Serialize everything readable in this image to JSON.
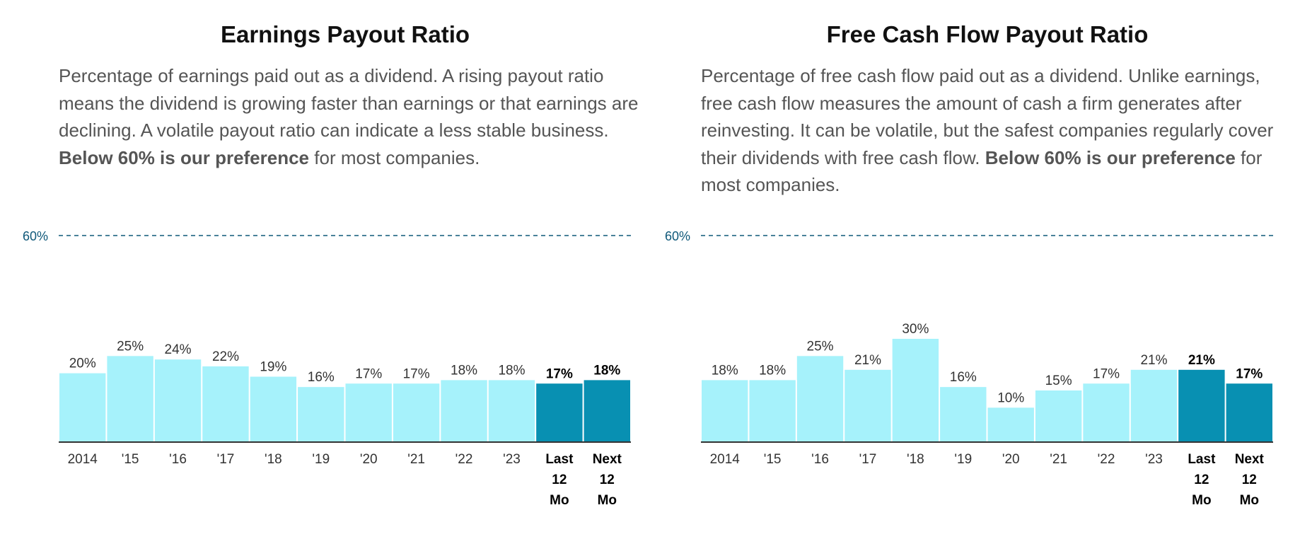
{
  "colors": {
    "bar_history": "#a6f2fb",
    "bar_highlight": "#0890b2",
    "threshold_line": "#0f5879",
    "axis": "#333333",
    "title": "#111111",
    "description": "#555555"
  },
  "panels": [
    {
      "title": "Earnings Payout Ratio",
      "description_parts": [
        "Percentage of earnings paid out as a dividend. A rising payout ratio means the dividend is growing faster than earnings or that earnings are declining. A volatile payout ratio can indicate a less stable business. ",
        "Below 60% is our preference",
        " for most companies."
      ]
    },
    {
      "title": "Free Cash Flow Payout Ratio",
      "description_parts": [
        "Percentage of free cash flow paid out as a dividend. Unlike earnings, free cash flow measures the amount of cash a firm generates after reinvesting. It can be volatile, but the safest companies regularly cover their dividends with free cash flow. ",
        "Below 60% is our preference",
        " for most companies."
      ]
    }
  ],
  "chart_data": [
    {
      "type": "bar",
      "title": "Earnings Payout Ratio",
      "categories": [
        "2014",
        "'15",
        "'16",
        "'17",
        "'18",
        "'19",
        "'20",
        "'21",
        "'22",
        "'23",
        "Last 12 Mo",
        "Next 12 Mo"
      ],
      "values": [
        20,
        25,
        24,
        22,
        19,
        16,
        17,
        17,
        18,
        18,
        17,
        18
      ],
      "value_labels": [
        "20%",
        "25%",
        "24%",
        "22%",
        "19%",
        "16%",
        "17%",
        "17%",
        "18%",
        "18%",
        "17%",
        "18%"
      ],
      "highlighted": [
        false,
        false,
        false,
        false,
        false,
        false,
        false,
        false,
        false,
        false,
        true,
        true
      ],
      "reference_line": {
        "value": 60,
        "label": "60%",
        "style": "dashed"
      },
      "ylim": [
        0,
        60
      ],
      "grid": false
    },
    {
      "type": "bar",
      "title": "Free Cash Flow Payout Ratio",
      "categories": [
        "2014",
        "'15",
        "'16",
        "'17",
        "'18",
        "'19",
        "'20",
        "'21",
        "'22",
        "'23",
        "Last 12 Mo",
        "Next 12 Mo"
      ],
      "values": [
        18,
        18,
        25,
        21,
        30,
        16,
        10,
        15,
        17,
        21,
        21,
        17
      ],
      "value_labels": [
        "18%",
        "18%",
        "25%",
        "21%",
        "30%",
        "16%",
        "10%",
        "15%",
        "17%",
        "21%",
        "21%",
        "17%"
      ],
      "highlighted": [
        false,
        false,
        false,
        false,
        false,
        false,
        false,
        false,
        false,
        false,
        true,
        true
      ],
      "reference_line": {
        "value": 60,
        "label": "60%",
        "style": "dashed"
      },
      "ylim": [
        0,
        60
      ],
      "grid": false
    }
  ]
}
